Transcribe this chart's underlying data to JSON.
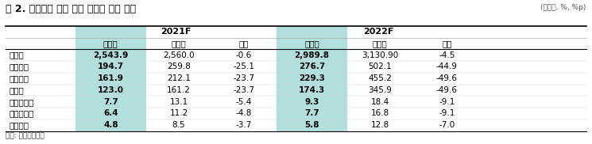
{
  "title": "표 2. 효성화학 연간 실적 추정치 변경 내역",
  "unit_label": "(십억원, %, %p)",
  "source": "자료: 하나금융투자",
  "col_groups": [
    "2021F",
    "2022F"
  ],
  "sub_cols": [
    "변경후",
    "변경전",
    "차이",
    "변경후",
    "변경전",
    "차이"
  ],
  "row_labels": [
    "매출액",
    "영업이익",
    "세전이익",
    "순이익",
    "영업이익률",
    "세전이익률",
    "순이익률"
  ],
  "data": [
    [
      "2,543.9",
      "2,560.0",
      "-0.6",
      "2,989.8",
      "3,130.90",
      "-4.5"
    ],
    [
      "194.7",
      "259.8",
      "-25.1",
      "276.7",
      "502.1",
      "-44.9"
    ],
    [
      "161.9",
      "212.1",
      "-23.7",
      "229.3",
      "455.2",
      "-49.6"
    ],
    [
      "123.0",
      "161.2",
      "-23.7",
      "174.3",
      "345.9",
      "-49.6"
    ],
    [
      "7.7",
      "13.1",
      "-5.4",
      "9.3",
      "18.4",
      "-9.1"
    ],
    [
      "6.4",
      "11.2",
      "-4.8",
      "7.7",
      "16.8",
      "-9.1"
    ],
    [
      "4.8",
      "8.5",
      "-3.7",
      "5.8",
      "12.8",
      "-7.0"
    ]
  ],
  "bold_cols": [
    0,
    3
  ],
  "highlight_col_bg": "#b2dfdb",
  "bg_color": "#ffffff",
  "title_fontsize": 9,
  "cell_fontsize": 7.5,
  "header_fontsize": 7.5,
  "row_label_fontsize": 7.5
}
